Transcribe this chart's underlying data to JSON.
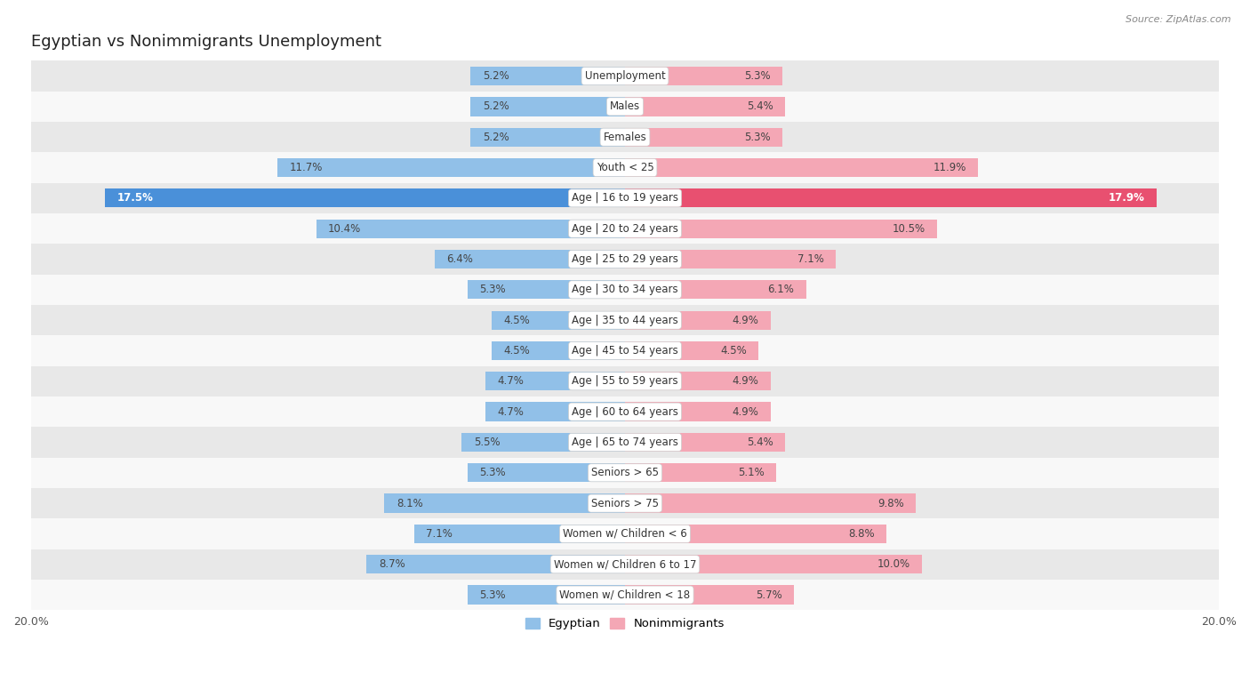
{
  "title": "Egyptian vs Nonimmigrants Unemployment",
  "source": "Source: ZipAtlas.com",
  "categories": [
    "Unemployment",
    "Males",
    "Females",
    "Youth < 25",
    "Age | 16 to 19 years",
    "Age | 20 to 24 years",
    "Age | 25 to 29 years",
    "Age | 30 to 34 years",
    "Age | 35 to 44 years",
    "Age | 45 to 54 years",
    "Age | 55 to 59 years",
    "Age | 60 to 64 years",
    "Age | 65 to 74 years",
    "Seniors > 65",
    "Seniors > 75",
    "Women w/ Children < 6",
    "Women w/ Children 6 to 17",
    "Women w/ Children < 18"
  ],
  "egyptian": [
    5.2,
    5.2,
    5.2,
    11.7,
    17.5,
    10.4,
    6.4,
    5.3,
    4.5,
    4.5,
    4.7,
    4.7,
    5.5,
    5.3,
    8.1,
    7.1,
    8.7,
    5.3
  ],
  "nonimmigrants": [
    5.3,
    5.4,
    5.3,
    11.9,
    17.9,
    10.5,
    7.1,
    6.1,
    4.9,
    4.5,
    4.9,
    4.9,
    5.4,
    5.1,
    9.8,
    8.8,
    10.0,
    5.7
  ],
  "egyptian_color": "#91c0e8",
  "nonimmigrant_color": "#f4a7b5",
  "highlight_egyptian_color": "#4a90d9",
  "highlight_nonimmigrant_color": "#e85070",
  "row_bg_odd": "#e8e8e8",
  "row_bg_even": "#f8f8f8",
  "axis_max": 20.0,
  "bar_height": 0.62,
  "legend_egyptian": "Egyptian",
  "legend_nonimmigrants": "Nonimmigrants"
}
